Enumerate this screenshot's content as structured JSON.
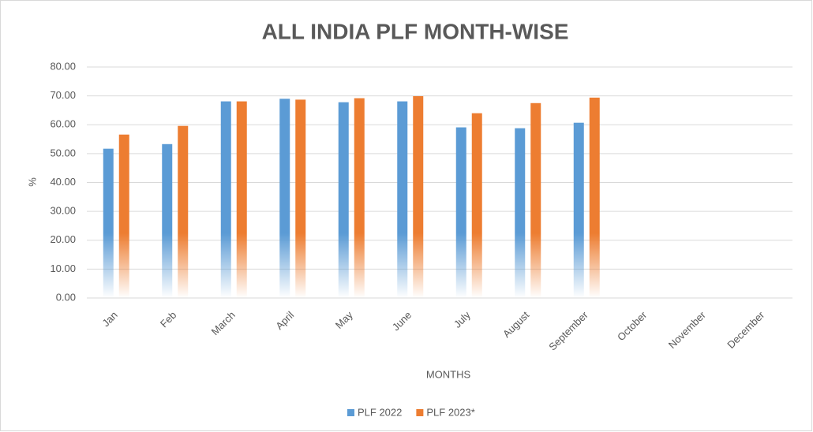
{
  "chart_data": {
    "type": "bar",
    "title": "ALL INDIA PLF MONTH-WISE",
    "x_label": "MONTHS",
    "y_label": "%",
    "categories": [
      "Jan",
      "Feb",
      "March",
      "April",
      "May",
      "June",
      "July",
      "August",
      "September",
      "October",
      "November",
      "December"
    ],
    "series": [
      {
        "name": "PLF 2022",
        "color": "#5b9bd5",
        "values": [
          51.7,
          53.3,
          68.1,
          69.0,
          67.8,
          68.1,
          59.1,
          58.8,
          60.7,
          null,
          null,
          null
        ]
      },
      {
        "name": "PLF 2023*",
        "color": "#ed7d31",
        "values": [
          56.6,
          59.6,
          68.1,
          68.7,
          69.2,
          69.9,
          64.0,
          67.5,
          69.4,
          null,
          null,
          null
        ]
      }
    ],
    "ylim": [
      0,
      80
    ],
    "yticks": [
      {
        "value": 0,
        "label": "0.00"
      },
      {
        "value": 10,
        "label": "10.00"
      },
      {
        "value": 20,
        "label": "20.00"
      },
      {
        "value": 30,
        "label": "30.00"
      },
      {
        "value": 40,
        "label": "40.00"
      },
      {
        "value": 50,
        "label": "50.00"
      },
      {
        "value": 60,
        "label": "60.00"
      },
      {
        "value": 70,
        "label": "70.00"
      },
      {
        "value": 80,
        "label": "80.00"
      }
    ],
    "grid": true,
    "legend": "bottom"
  }
}
